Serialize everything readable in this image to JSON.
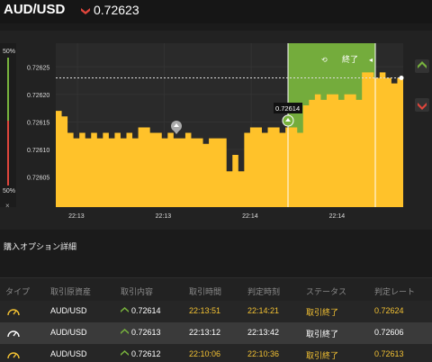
{
  "header": {
    "pair": "AUD/USD",
    "price": "0.72623",
    "direction_icon": "arrow-down-icon",
    "down_color": "#e0463c"
  },
  "chart_data": {
    "type": "area",
    "y_ticks": [
      "0.72625",
      "0.72620",
      "0.72615",
      "0.72610",
      "0.72605"
    ],
    "y_tick_values": [
      0.72625,
      0.7262,
      0.72615,
      0.7261,
      0.72605
    ],
    "ylim": [
      0.725995,
      0.726293
    ],
    "x_ticks": [
      "22:13",
      "22:13",
      "22:14",
      "22:14"
    ],
    "current_price_label": "0.72614",
    "current_line_value": 0.72623,
    "fill_color": "#ffc22a",
    "highlight_color": "#78b33d",
    "highlight_label": "終了",
    "series": [
      {
        "values": [
          0.72617,
          0.72616,
          0.72613,
          0.72612,
          0.72613,
          0.72612,
          0.72613,
          0.72612,
          0.72613,
          0.72612,
          0.72613,
          0.72612,
          0.72613,
          0.72612,
          0.72614,
          0.72614,
          0.72613,
          0.72613,
          0.72612,
          0.72613,
          0.72612,
          0.72612,
          0.72613,
          0.72612,
          0.72612,
          0.72611,
          0.72612,
          0.72612,
          0.72612,
          0.72606,
          0.72609,
          0.72606,
          0.72613,
          0.72614,
          0.72614,
          0.72613,
          0.72614,
          0.72614,
          0.72613,
          0.72614,
          0.72614,
          0.72613,
          0.72618,
          0.72619,
          0.7262,
          0.72619,
          0.7262,
          0.7262,
          0.72619,
          0.7262,
          0.7262,
          0.72619,
          0.72624,
          0.72624,
          0.72623,
          0.72624,
          0.72623,
          0.72622,
          0.72623,
          0.72623
        ]
      }
    ]
  },
  "chart_ui": {
    "left_top_pct": "50%",
    "left_bottom_pct": "50%",
    "close_label": "×",
    "up_color": "#78b33d",
    "down_color": "#e0463c"
  },
  "section": {
    "title": "購入オプション詳細"
  },
  "table": {
    "columns": [
      "タイプ",
      "取引原資産",
      "取引内容",
      "取引時間",
      "判定時刻",
      "ステータス",
      "判定レート"
    ],
    "rows": [
      {
        "type_icon": "gauge-icon",
        "asset": "AUD/USD",
        "direction": "up",
        "rate": "0.72614",
        "trade_time": "22:13:51",
        "judge_time": "22:14:21",
        "status": "取引終了",
        "judge_rate": "0.72624"
      },
      {
        "type_icon": "gauge-icon",
        "asset": "AUD/USD",
        "direction": "up",
        "rate": "0.72613",
        "trade_time": "22:13:12",
        "judge_time": "22:13:42",
        "status": "取引終了",
        "judge_rate": "0.72606"
      },
      {
        "type_icon": "gauge-icon",
        "asset": "AUD/USD",
        "direction": "up",
        "rate": "0.72612",
        "trade_time": "22:10:06",
        "judge_time": "22:10:36",
        "status": "取引終了",
        "judge_rate": "0.72613"
      }
    ]
  }
}
